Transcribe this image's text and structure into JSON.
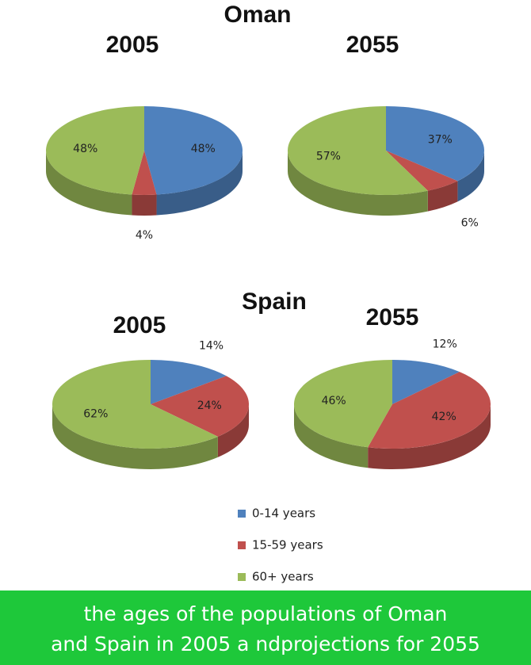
{
  "section_titles": [
    "Oman",
    "Spain"
  ],
  "chart_data": [
    {
      "type": "pie",
      "title": "2005",
      "categories": [
        "0-14 years",
        "15-59 years",
        "60+ years"
      ],
      "values": [
        48,
        4,
        48
      ],
      "value_labels": [
        "48%",
        "4%",
        "48%"
      ],
      "colors": [
        "#4f81bd",
        "#c0504d",
        "#9bbb59"
      ]
    },
    {
      "type": "pie",
      "title": "2055",
      "categories": [
        "0-14 years",
        "15-59 years",
        "60+ years"
      ],
      "values": [
        37,
        6,
        57
      ],
      "value_labels": [
        "37%",
        "6%",
        "57%"
      ],
      "colors": [
        "#4f81bd",
        "#c0504d",
        "#9bbb59"
      ]
    },
    {
      "type": "pie",
      "title": "2005",
      "categories": [
        "0-14 years",
        "15-59 years",
        "60+ years"
      ],
      "values": [
        14,
        24,
        62
      ],
      "value_labels": [
        "14%",
        "24%",
        "62%"
      ],
      "colors": [
        "#4f81bd",
        "#c0504d",
        "#9bbb59"
      ]
    },
    {
      "type": "pie",
      "title": "2055",
      "categories": [
        "0-14 years",
        "15-59 years",
        "60+ years"
      ],
      "values": [
        12,
        42,
        46
      ],
      "value_labels": [
        "12%",
        "42%",
        "46%"
      ],
      "colors": [
        "#4f81bd",
        "#c0504d",
        "#9bbb59"
      ]
    }
  ],
  "caption": [
    "the ages of the populations of Oman",
    "and Spain in 2005 a ndprojections for 2055"
  ]
}
